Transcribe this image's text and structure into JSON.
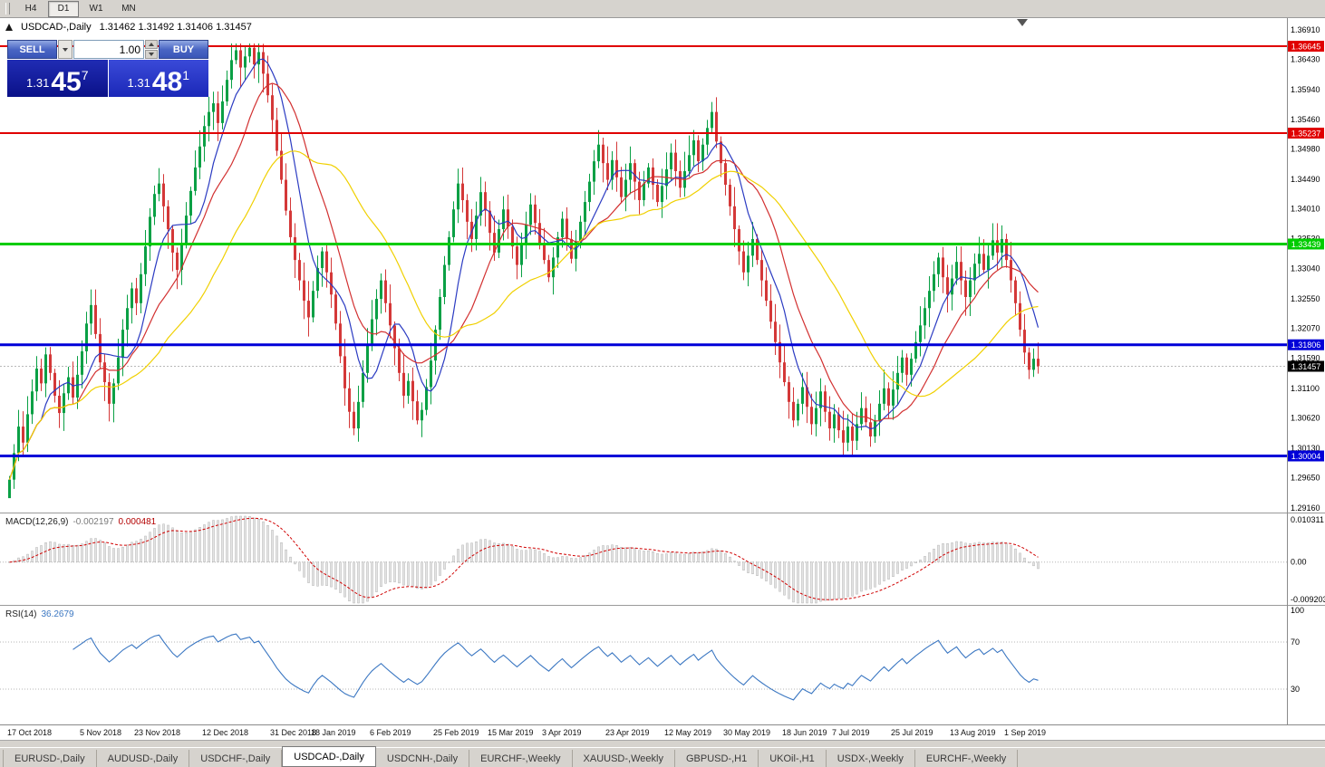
{
  "toolbar": {
    "periods": [
      {
        "label": "H4",
        "active": false
      },
      {
        "label": "D1",
        "active": true
      },
      {
        "label": "W1",
        "active": false
      },
      {
        "label": "MN",
        "active": false
      }
    ]
  },
  "title_bar": {
    "symbol": "USDCAD-,Daily",
    "ohlc": "1.31462 1.31492 1.31406 1.31457"
  },
  "trade_panel": {
    "sell_label": "SELL",
    "buy_label": "BUY",
    "lot_size": "1.00",
    "sell_price": {
      "prefix": "1.31",
      "big": "45",
      "sup": "7"
    },
    "buy_price": {
      "prefix": "1.31",
      "big": "48",
      "sup": "1"
    }
  },
  "price_axis": {
    "ticks": [
      "1.36910",
      "1.36430",
      "1.35940",
      "1.35460",
      "1.34980",
      "1.34490",
      "1.34010",
      "1.33530",
      "1.33040",
      "1.32550",
      "1.32070",
      "1.31590",
      "1.31100",
      "1.30620",
      "1.30130",
      "1.29650",
      "1.29160"
    ]
  },
  "hlines": [
    {
      "price": 1.36645,
      "label": "1.36645",
      "color": "#e00000",
      "width": 2
    },
    {
      "price": 1.35237,
      "label": "1.35237",
      "color": "#e00000",
      "width": 2
    },
    {
      "price": 1.33439,
      "label": "1.33439",
      "color": "#00cc00",
      "width": 3
    },
    {
      "price": 1.31806,
      "label": "1.31806",
      "color": "#0000d8",
      "width": 3
    },
    {
      "price": 1.30004,
      "label": "1.30004",
      "color": "#0000d8",
      "width": 3
    }
  ],
  "bid": {
    "price": 1.31457,
    "label": "1.31457",
    "tag_color": "#000000",
    "line_color": "#b8b8b8"
  },
  "indicators": {
    "macd": {
      "name": "MACD(12,26,9)",
      "value_main": "-0.002197",
      "value_signal": "0.000481",
      "fast": 12,
      "slow": 26,
      "signal": 9,
      "axis": {
        "max": "0.010311",
        "zero": "0.00",
        "min": "-0.009203"
      },
      "histogram_color": "#e4e4e4",
      "histogram_border": "#a2a2a2",
      "signal_color": "#d00000"
    },
    "rsi": {
      "name": "RSI(14)",
      "value": "36.2679",
      "period": 14,
      "levels": [
        70,
        30
      ],
      "axis_labels": [
        {
          "v": 100,
          "label": "100"
        },
        {
          "v": 70,
          "label": "70"
        },
        {
          "v": 30,
          "label": "30"
        }
      ],
      "line_color": "#3b77c2"
    }
  },
  "date_axis": [
    {
      "label": "17 Oct 2018",
      "i": 0
    },
    {
      "label": "5 Nov 2018",
      "i": 16
    },
    {
      "label": "23 Nov 2018",
      "i": 28
    },
    {
      "label": "12 Dec 2018",
      "i": 43
    },
    {
      "label": "31 Dec 2018",
      "i": 58
    },
    {
      "label": "18 Jan 2019",
      "i": 67
    },
    {
      "label": "6 Feb 2019",
      "i": 80
    },
    {
      "label": "25 Feb 2019",
      "i": 94
    },
    {
      "label": "15 Mar 2019",
      "i": 106
    },
    {
      "label": "3 Apr 2019",
      "i": 118
    },
    {
      "label": "23 Apr 2019",
      "i": 132
    },
    {
      "label": "12 May 2019",
      "i": 145
    },
    {
      "label": "30 May 2019",
      "i": 158
    },
    {
      "label": "18 Jun 2019",
      "i": 171
    },
    {
      "label": "7 Jul 2019",
      "i": 182
    },
    {
      "label": "25 Jul 2019",
      "i": 195
    },
    {
      "label": "13 Aug 2019",
      "i": 208
    },
    {
      "label": "1 Sep 2019",
      "i": 220
    }
  ],
  "tabs": [
    {
      "label": "EURUSD-,Daily",
      "active": false
    },
    {
      "label": "AUDUSD-,Daily",
      "active": false
    },
    {
      "label": "USDCHF-,Daily",
      "active": false
    },
    {
      "label": "USDCAD-,Daily",
      "active": true
    },
    {
      "label": "USDCNH-,Daily",
      "active": false
    },
    {
      "label": "EURCHF-,Weekly",
      "active": false
    },
    {
      "label": "XAUUSD-,Weekly",
      "active": false
    },
    {
      "label": "GBPUSD-,H1",
      "active": false
    },
    {
      "label": "UKOil-,H1",
      "active": false
    },
    {
      "label": "USDX-,Weekly",
      "active": false
    },
    {
      "label": "EURCHF-,Weekly",
      "active": false
    }
  ],
  "chart_data": {
    "type": "candlestick",
    "symbol": "USDCAD",
    "timeframe": "Daily",
    "title": "USDCAD-,Daily",
    "current": {
      "open": 1.31462,
      "high": 1.31492,
      "low": 1.31406,
      "close": 1.31457
    },
    "y_range": [
      1.2916,
      1.3691
    ],
    "up_color": "#0aa045",
    "down_color": "#d43838",
    "ma": [
      {
        "period": 8,
        "color": "#2b3bc2"
      },
      {
        "period": 16,
        "color": "#d23030"
      },
      {
        "period": 34,
        "color": "#f0d000"
      }
    ],
    "closes": [
      1.2962,
      1.3005,
      1.3048,
      1.3022,
      1.3068,
      1.3105,
      1.3142,
      1.3118,
      1.3165,
      1.3135,
      1.3098,
      1.307,
      1.3102,
      1.3128,
      1.3095,
      1.3132,
      1.317,
      1.3215,
      1.3245,
      1.3198,
      1.3152,
      1.312,
      1.3085,
      1.3118,
      1.316,
      1.3205,
      1.324,
      1.3272,
      1.3248,
      1.3295,
      1.334,
      1.3388,
      1.3425,
      1.3442,
      1.3405,
      1.3368,
      1.333,
      1.3302,
      1.3345,
      1.339,
      1.343,
      1.3468,
      1.3502,
      1.3535,
      1.3558,
      1.3572,
      1.354,
      1.3575,
      1.361,
      1.3642,
      1.3658,
      1.363,
      1.3648,
      1.3662,
      1.3635,
      1.3655,
      1.362,
      1.3585,
      1.3545,
      1.3495,
      1.3448,
      1.3398,
      1.3355,
      1.3318,
      1.3285,
      1.3252,
      1.3225,
      1.3268,
      1.3305,
      1.3332,
      1.3298,
      1.3262,
      1.3215,
      1.3162,
      1.311,
      1.3072,
      1.3045,
      1.3088,
      1.3135,
      1.318,
      1.3222,
      1.3255,
      1.3285,
      1.3248,
      1.3212,
      1.3175,
      1.3135,
      1.3098,
      1.3122,
      1.3089,
      1.3058,
      1.3075,
      1.3112,
      1.3155,
      1.3205,
      1.3258,
      1.331,
      1.3355,
      1.34,
      1.3442,
      1.3415,
      1.338,
      1.3352,
      1.339,
      1.3428,
      1.3398,
      1.3362,
      1.333,
      1.3368,
      1.34,
      1.3372,
      1.334,
      1.331,
      1.3342,
      1.3375,
      1.3408,
      1.3378,
      1.3345,
      1.3318,
      1.329,
      1.3322,
      1.3355,
      1.3385,
      1.3352,
      1.332,
      1.3348,
      1.338,
      1.3412,
      1.3445,
      1.3478,
      1.3505,
      1.3475,
      1.3448,
      1.348,
      1.3452,
      1.342,
      1.3448,
      1.3475,
      1.3445,
      1.3415,
      1.3442,
      1.3468,
      1.344,
      1.3412,
      1.3438,
      1.3465,
      1.3492,
      1.3462,
      1.3435,
      1.3462,
      1.3488,
      1.3512,
      1.3478,
      1.3505,
      1.3532,
      1.3558,
      1.351,
      1.3475,
      1.344,
      1.3405,
      1.3368,
      1.3332,
      1.3298,
      1.3325,
      1.3352,
      1.3318,
      1.3285,
      1.3252,
      1.3218,
      1.3185,
      1.3152,
      1.312,
      1.3088,
      1.3058,
      1.3085,
      1.3112,
      1.308,
      1.3052,
      1.3078,
      1.3105,
      1.3072,
      1.3045,
      1.3068,
      1.3042,
      1.3022,
      1.3048,
      1.3025,
      1.3052,
      1.3078,
      1.3055,
      1.3032,
      1.3058,
      1.3085,
      1.311,
      1.3082,
      1.3108,
      1.3135,
      1.316,
      1.3132,
      1.3158,
      1.3185,
      1.3212,
      1.324,
      1.3268,
      1.3295,
      1.3322,
      1.329,
      1.3262,
      1.3288,
      1.3315,
      1.3285,
      1.3258,
      1.3285,
      1.3312,
      1.3328,
      1.3302,
      1.3325,
      1.335,
      1.333,
      1.3352,
      1.3318,
      1.3285,
      1.3248,
      1.3205,
      1.3168,
      1.314,
      1.3158,
      1.31457
    ]
  }
}
